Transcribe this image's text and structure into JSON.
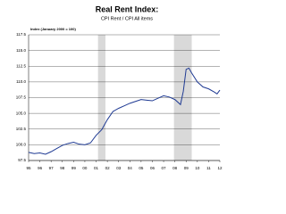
{
  "chart_data": {
    "type": "line",
    "title": "Real Rent Index:",
    "subtitle": "CPI Rent / CPI All items",
    "y_label": "Index (January 2000 = 100)",
    "x": [
      1995,
      1995.5,
      1996,
      1996.5,
      1997,
      1997.5,
      1998,
      1998.5,
      1999,
      1999.5,
      2000,
      2000.5,
      2001,
      2001.5,
      2002,
      2002.5,
      2003,
      2003.5,
      2004,
      2004.5,
      2005,
      2005.5,
      2006,
      2006.5,
      2007,
      2007.5,
      2008,
      2008.5,
      2008.75,
      2009,
      2009.25,
      2009.5,
      2010,
      2010.5,
      2011,
      2011.5,
      2011.75,
      2012
    ],
    "series": [
      {
        "name": "CPI Rent / CPI All items",
        "color": "#1f3a93",
        "values": [
          98.8,
          98.6,
          98.7,
          98.5,
          98.9,
          99.4,
          99.9,
          100.2,
          100.4,
          100.1,
          100.0,
          100.3,
          101.5,
          102.4,
          104.0,
          105.3,
          105.8,
          106.2,
          106.6,
          106.9,
          107.2,
          107.1,
          107.0,
          107.4,
          107.8,
          107.6,
          107.2,
          106.4,
          108.5,
          112.0,
          112.2,
          111.4,
          110.0,
          109.2,
          108.9,
          108.4,
          108.1,
          108.7
        ]
      }
    ],
    "recessions": [
      [
        2001.17,
        2001.83
      ],
      [
        2007.92,
        2009.5
      ]
    ],
    "recession_color": "#d9d9d9",
    "xlim": [
      1995,
      2012
    ],
    "xticks": [
      {
        "value": 1995,
        "label": "95"
      },
      {
        "value": 1996,
        "label": "96"
      },
      {
        "value": 1997,
        "label": "97"
      },
      {
        "value": 1998,
        "label": "98"
      },
      {
        "value": 1999,
        "label": "99"
      },
      {
        "value": 2000,
        "label": "00"
      },
      {
        "value": 2001,
        "label": "01"
      },
      {
        "value": 2002,
        "label": "02"
      },
      {
        "value": 2003,
        "label": "03"
      },
      {
        "value": 2004,
        "label": "04"
      },
      {
        "value": 2005,
        "label": "05"
      },
      {
        "value": 2006,
        "label": "06"
      },
      {
        "value": 2007,
        "label": "07"
      },
      {
        "value": 2008,
        "label": "08"
      },
      {
        "value": 2009,
        "label": "09"
      },
      {
        "value": 2010,
        "label": "10"
      },
      {
        "value": 2011,
        "label": "11"
      },
      {
        "value": 2012,
        "label": "12"
      }
    ],
    "ylim": [
      97.5,
      117.5
    ],
    "yticks": [
      97.5,
      {
        "value": 100,
        "label": "100.0"
      },
      102.5,
      {
        "value": 105,
        "label": "105.0"
      },
      107.5,
      {
        "value": 110,
        "label": "110.0"
      },
      112.5,
      {
        "value": 115,
        "label": "115.0"
      },
      117.5
    ],
    "grid": true
  }
}
